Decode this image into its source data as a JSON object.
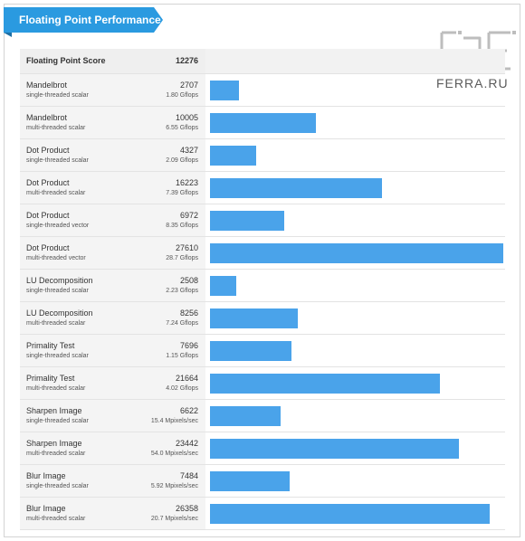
{
  "title": "Floating Point Performance",
  "logo": {
    "brand": "FERRA.RU"
  },
  "colors": {
    "ribbon": "#2a9ae0",
    "bar": "#4aa3ea"
  },
  "header": {
    "label": "Floating Point Score",
    "score": "12276"
  },
  "chart_data": {
    "type": "bar",
    "orientation": "horizontal",
    "title": "Floating Point Performance",
    "xlim": [
      0,
      27610
    ],
    "rows": [
      {
        "name": "Mandelbrot",
        "sub": "single-threaded scalar",
        "score": 2707,
        "rate": "1.80 Gflops"
      },
      {
        "name": "Mandelbrot",
        "sub": "multi-threaded scalar",
        "score": 10005,
        "rate": "6.55 Gflops"
      },
      {
        "name": "Dot Product",
        "sub": "single-threaded scalar",
        "score": 4327,
        "rate": "2.09 Gflops"
      },
      {
        "name": "Dot Product",
        "sub": "multi-threaded scalar",
        "score": 16223,
        "rate": "7.39 Gflops"
      },
      {
        "name": "Dot Product",
        "sub": "single-threaded vector",
        "score": 6972,
        "rate": "8.35 Gflops"
      },
      {
        "name": "Dot Product",
        "sub": "multi-threaded vector",
        "score": 27610,
        "rate": "28.7 Gflops"
      },
      {
        "name": "LU Decomposition",
        "sub": "single-threaded scalar",
        "score": 2508,
        "rate": "2.23 Gflops"
      },
      {
        "name": "LU Decomposition",
        "sub": "multi-threaded scalar",
        "score": 8256,
        "rate": "7.24 Gflops"
      },
      {
        "name": "Primality Test",
        "sub": "single-threaded scalar",
        "score": 7696,
        "rate": "1.15 Gflops"
      },
      {
        "name": "Primality Test",
        "sub": "multi-threaded scalar",
        "score": 21664,
        "rate": "4.02 Gflops"
      },
      {
        "name": "Sharpen Image",
        "sub": "single-threaded scalar",
        "score": 6622,
        "rate": "15.4 Mpixels/sec"
      },
      {
        "name": "Sharpen Image",
        "sub": "multi-threaded scalar",
        "score": 23442,
        "rate": "54.0 Mpixels/sec"
      },
      {
        "name": "Blur Image",
        "sub": "single-threaded scalar",
        "score": 7484,
        "rate": "5.92 Mpixels/sec"
      },
      {
        "name": "Blur Image",
        "sub": "multi-threaded scalar",
        "score": 26358,
        "rate": "20.7 Mpixels/sec"
      }
    ]
  }
}
